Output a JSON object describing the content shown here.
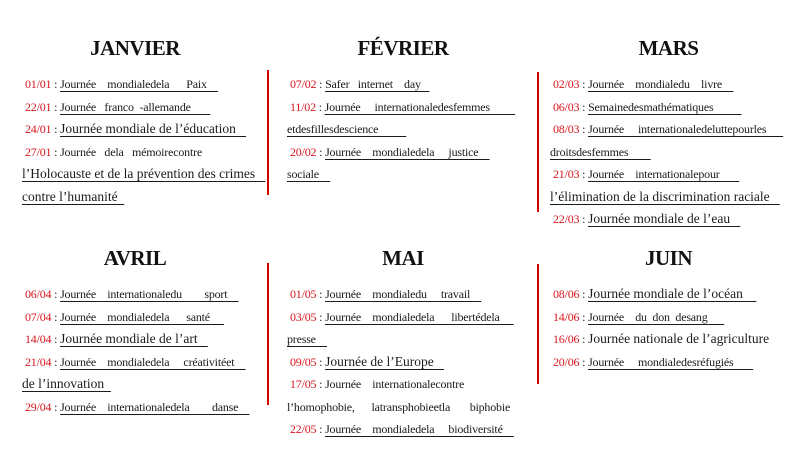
{
  "separator": " : ",
  "colors": {
    "date_red": "#d9151c",
    "divider_red": "#d40000",
    "text_black": "#1b1b1b"
  },
  "months": [
    {
      "name": "JANVIER",
      "rows": [
        {
          "date": "01/01",
          "text": "Journée    mondialedela      Paix    ",
          "style": "u-sm"
        },
        {
          "date": "22/01",
          "text": "Journée   franco  -allemande       ",
          "style": "u-sm"
        },
        {
          "date": "24/01",
          "text": "Journée mondiale de l’éducation   ",
          "style": "u-bg"
        },
        {
          "date": "27/01",
          "text": "Journée   dela   mémoirecontre",
          "style": "n-sm"
        },
        {
          "text": "l’Holocauste et de la prévention des crimes   ",
          "style": "u-bg"
        },
        {
          "text": "contre l’humanité  ",
          "style": "u-bg"
        }
      ]
    },
    {
      "name": "FÉVRIER",
      "rows": [
        {
          "date": "07/02",
          "text": "Safer   internet    day   ",
          "style": "u-sm"
        },
        {
          "date": "11/02",
          "text": "Journée     internationaledesfemmes         ",
          "style": "u-sm"
        },
        {
          "text": "etdesfillesdescience          ",
          "style": "u-sm"
        },
        {
          "date": "20/02",
          "text": "Journée    mondialedela     justice    ",
          "style": "u-sm"
        },
        {
          "text": "sociale    ",
          "style": "u-sm"
        }
      ]
    },
    {
      "name": "MARS",
      "rows": [
        {
          "date": "02/03",
          "text": "Journée    mondialedu    livre    ",
          "style": "u-sm"
        },
        {
          "date": "06/03",
          "text": "Semainedesmathématiques          ",
          "style": "u-sm"
        },
        {
          "date": "08/03",
          "text": "Journée     internationaledeluttepourles      ",
          "style": "u-sm"
        },
        {
          "text": "droitsdesfemmes        ",
          "style": "u-sm"
        },
        {
          "date": "21/03",
          "text": "Journée    internationalepour       ",
          "style": "u-sm"
        },
        {
          "text": "l’élimination de la discrimination raciale   ",
          "style": "u-bg"
        },
        {
          "date": "22/03",
          "text": "Journée mondiale de l’eau   ",
          "style": "u-bg"
        }
      ]
    },
    {
      "name": "AVRIL",
      "rows": [
        {
          "date": "06/04",
          "text": "Journée    internationaledu        sport    ",
          "style": "u-sm"
        },
        {
          "date": "07/04",
          "text": "Journée    mondialedela      santé     ",
          "style": "u-sm"
        },
        {
          "date": "14/04",
          "text": "Journée mondiale de l’art   ",
          "style": "u-bg"
        },
        {
          "date": "21/04",
          "text": "Journée    mondialedela     créativitéet    ",
          "style": "u-sm"
        },
        {
          "text": "de l’innovation  ",
          "style": "u-bg"
        },
        {
          "date": "29/04",
          "text": "Journée    internationaledela        danse    ",
          "style": "u-sm"
        }
      ]
    },
    {
      "name": "MAI",
      "rows": [
        {
          "date": "01/05",
          "text": "Journée    mondialedu     travail    ",
          "style": "u-sm"
        },
        {
          "date": "03/05",
          "text": "Journée    mondialedela      libertédela     ",
          "style": "u-sm"
        },
        {
          "text": "presse    ",
          "style": "u-sm"
        },
        {
          "date": "09/05",
          "text": "Journée de l’Europe   ",
          "style": "u-bg"
        },
        {
          "date": "17/05",
          "text": "Journée    internationalecontre",
          "style": "n-sm"
        },
        {
          "text": "l’homophobie,      latransphobieetla       biphobie",
          "style": "n-sm"
        },
        {
          "date": "22/05",
          "text": "Journée    mondialedela     biodiversité    ",
          "style": "u-sm"
        }
      ]
    },
    {
      "name": "JUIN",
      "rows": [
        {
          "date": "08/06",
          "text": "Journée mondiale de l’océan    ",
          "style": "u-bg"
        },
        {
          "date": "14/06",
          "text": "Journée    du  don  desang      ",
          "style": "u-sm"
        },
        {
          "date": "16/06",
          "text": "Journée nationale de l’agriculture",
          "style": "n-bg"
        },
        {
          "date": "20/06",
          "text": "Journée     mondialedesréfugiés       ",
          "style": "u-sm"
        }
      ]
    }
  ]
}
